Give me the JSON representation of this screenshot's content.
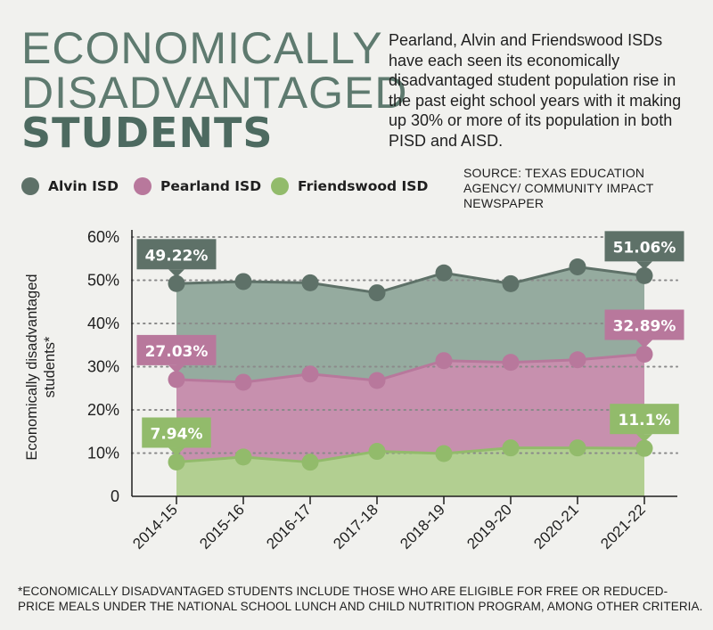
{
  "title": {
    "line1": "ECONOMICALLY",
    "line2": "DISADVANTAGED",
    "line3": "STUDENTS"
  },
  "description": "Pearland, Alvin and Friendswood ISDs have each seen its economically disadvantaged student population rise in the past eight school years with it making up 30% or more of its population in both PISD and AISD.",
  "source": "SOURCE: TEXAS EDUCATION AGENCY/ COMMUNITY IMPACT NEWSPAPER",
  "footnote": "*ECONOMICALLY DISADVANTAGED STUDENTS INCLUDE THOSE WHO ARE ELIGIBLE FOR FREE OR REDUCED-PRICE MEALS UNDER THE NATIONAL SCHOOL LUNCH AND CHILD NUTRITION PROGRAM, AMONG OTHER CRITERIA.",
  "colors": {
    "background": "#f1f1ee",
    "title": "#5e7a6f",
    "alvin_line": "#5e7168",
    "alvin_fill": "#95ab9f",
    "pearland_line": "#b8789c",
    "pearland_fill": "#c790ae",
    "friendswood_line": "#92bb6b",
    "friendswood_fill": "#b2cf91"
  },
  "chart_data": {
    "type": "area",
    "categories": [
      "2014-15",
      "2015-16",
      "2016-17",
      "2017-18",
      "2018-19",
      "2019-20",
      "2020-21",
      "2021-22"
    ],
    "ylabel": "Economically disadvantaged students*",
    "xlabel": "",
    "ylim": [
      0,
      60
    ],
    "yticks": [
      0,
      10,
      20,
      30,
      40,
      50,
      60
    ],
    "ytick_labels": [
      "0",
      "10%",
      "20%",
      "30%",
      "40%",
      "50%",
      "60%"
    ],
    "grid": "dotted horizontal",
    "legend_position": "top-left",
    "series": [
      {
        "name": "Alvin ISD",
        "values": [
          49.22,
          49.7,
          49.4,
          47.1,
          51.7,
          49.2,
          53.1,
          51.06
        ],
        "color": "#5e7168",
        "fill": "#95ab9f"
      },
      {
        "name": "Pearland ISD",
        "values": [
          27.03,
          26.4,
          28.3,
          26.8,
          31.4,
          31.0,
          31.6,
          32.89
        ],
        "color": "#b8789c",
        "fill": "#c790ae"
      },
      {
        "name": "Friendswood ISD",
        "values": [
          7.94,
          9.1,
          7.9,
          10.4,
          9.9,
          11.2,
          11.2,
          11.1
        ],
        "color": "#92bb6b",
        "fill": "#b2cf91"
      }
    ],
    "annotations": [
      {
        "series": 0,
        "index": 0,
        "text": "49.22%"
      },
      {
        "series": 0,
        "index": 7,
        "text": "51.06%"
      },
      {
        "series": 1,
        "index": 0,
        "text": "27.03%"
      },
      {
        "series": 1,
        "index": 7,
        "text": "32.89%"
      },
      {
        "series": 2,
        "index": 0,
        "text": "7.94%"
      },
      {
        "series": 2,
        "index": 7,
        "text": "11.1%"
      }
    ]
  }
}
